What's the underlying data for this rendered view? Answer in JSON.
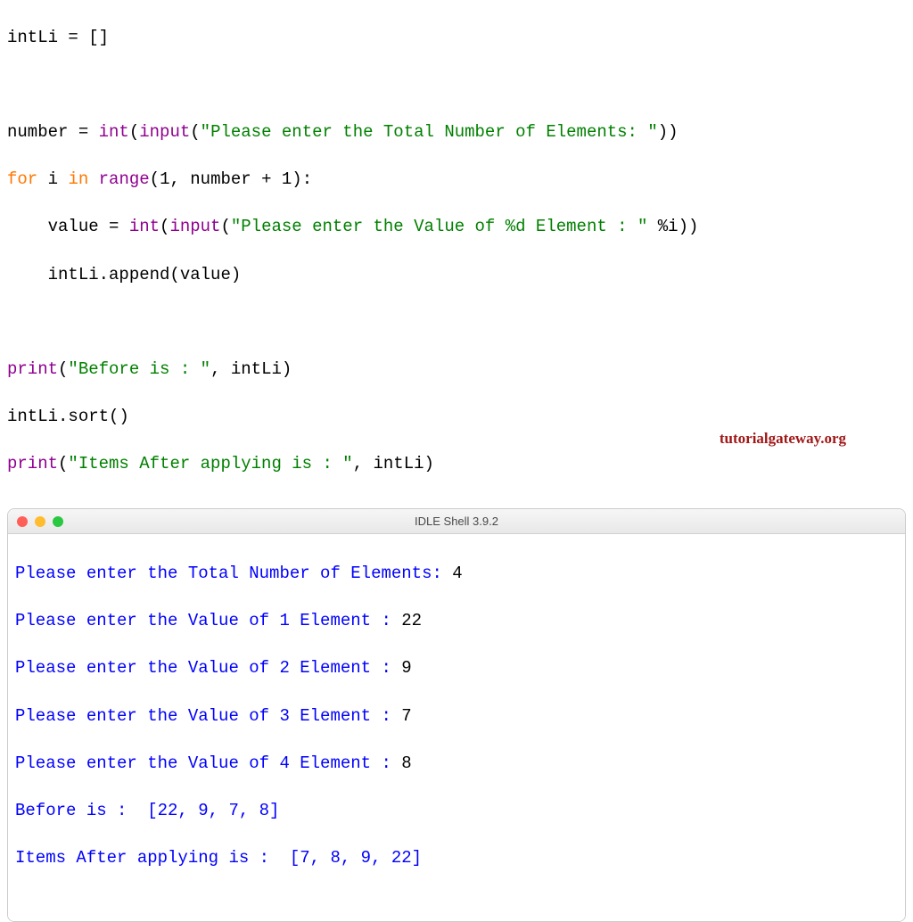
{
  "code": {
    "line1_var": "intLi = []",
    "line2_empty": "",
    "line3_var": "number = ",
    "line3_int": "int",
    "line3_paren1": "(",
    "line3_input": "input",
    "line3_paren2": "(",
    "line3_str": "\"Please enter the Total Number of Elements: \"",
    "line3_close": "))",
    "line4_for": "for",
    "line4_i": " i ",
    "line4_in": "in",
    "line4_space": " ",
    "line4_range": "range",
    "line4_args": "(1, number + 1):",
    "line5_indent": "    value = ",
    "line5_int": "int",
    "line5_paren1": "(",
    "line5_input": "input",
    "line5_paren2": "(",
    "line5_str": "\"Please enter the Value of %d Element : \"",
    "line5_pct": " %i))",
    "line6_append": "    intLi.append(value)",
    "line7_empty": "",
    "line8_print": "print",
    "line8_paren": "(",
    "line8_str": "\"Before is : \"",
    "line8_rest": ", intLi)",
    "line9_sort": "intLi.sort()",
    "line10_print": "print",
    "line10_paren": "(",
    "line10_str": "\"Items After applying is : \"",
    "line10_rest": ", intLi)"
  },
  "shell": {
    "title": "IDLE Shell 3.9.2",
    "line1_prompt": "Please enter the Total Number of Elements: ",
    "line1_input": "4",
    "line2_prompt": "Please enter the Value of 1 Element : ",
    "line2_input": "22",
    "line3_prompt": "Please enter the Value of 2 Element : ",
    "line3_input": "9",
    "line4_prompt": "Please enter the Value of 3 Element : ",
    "line4_input": "7",
    "line5_prompt": "Please enter the Value of 4 Element : ",
    "line5_input": "8",
    "line6": "Before is :  [22, 9, 7, 8]",
    "line7": "Items After applying is :  [7, 8, 9, 22]"
  },
  "watermark": "tutorialgateway.org",
  "colors": {
    "blue": "#0000ff",
    "black": "#000000",
    "purple": "#900090",
    "green": "#008000",
    "orange": "#ff7700",
    "red": "#dd0000",
    "watermark": "#a01818"
  }
}
